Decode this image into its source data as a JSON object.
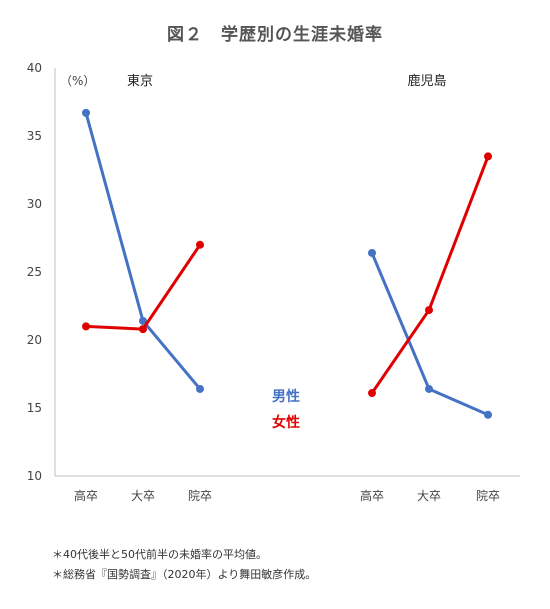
{
  "title": "図２　学歴別の生涯未婚率",
  "chart_data": {
    "type": "line",
    "ylabel": "（%）",
    "ylim": [
      10,
      40
    ],
    "yticks": [
      10,
      15,
      20,
      25,
      30,
      35,
      40
    ],
    "panels": [
      {
        "name": "東京",
        "categories": [
          "高卒",
          "大卒",
          "院卒"
        ],
        "series": [
          {
            "name": "男性",
            "color": "#4472C4",
            "values": [
              36.7,
              21.4,
              16.4
            ]
          },
          {
            "name": "女性",
            "color": "#E00000",
            "values": [
              21.0,
              20.8,
              27.0
            ]
          }
        ]
      },
      {
        "name": "鹿児島",
        "categories": [
          "高卒",
          "大卒",
          "院卒"
        ],
        "series": [
          {
            "name": "男性",
            "color": "#4472C4",
            "values": [
              26.4,
              16.4,
              14.5
            ]
          },
          {
            "name": "女性",
            "color": "#E00000",
            "values": [
              16.1,
              22.2,
              33.5
            ]
          }
        ]
      }
    ],
    "legend": [
      "男性",
      "女性"
    ]
  },
  "notes": [
    "＊40代後半と50代前半の未婚率の平均値。",
    "＊総務省『国勢調査』（2020年）より舞田敏彦作成。"
  ]
}
